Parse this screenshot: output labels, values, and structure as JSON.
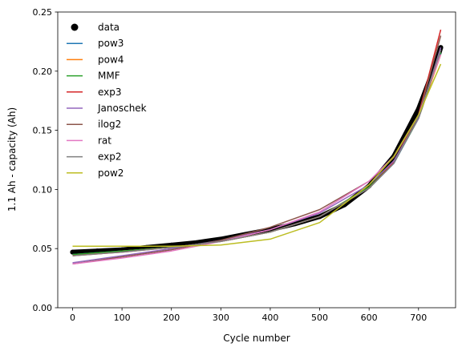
{
  "chart_data": {
    "type": "line",
    "xlabel": "Cycle number",
    "ylabel": "1.1 Ah - capacity (Ah)",
    "xlim": [
      -30,
      775
    ],
    "ylim": [
      0,
      0.25
    ],
    "xticks": [
      0,
      100,
      200,
      300,
      400,
      500,
      600,
      700
    ],
    "yticks": [
      0.0,
      0.05,
      0.1,
      0.15,
      0.2,
      0.25
    ],
    "ytick_labels": [
      "0.00",
      "0.05",
      "0.10",
      "0.15",
      "0.20",
      "0.25"
    ],
    "legend_position": "top-left",
    "grid": false,
    "data_points": {
      "name": "data",
      "color": "#000000",
      "x": [
        0,
        50,
        100,
        150,
        200,
        250,
        300,
        350,
        400,
        450,
        500,
        550,
        600,
        650,
        700,
        720,
        740,
        745
      ],
      "y": [
        0.047,
        0.048,
        0.049,
        0.051,
        0.053,
        0.055,
        0.058,
        0.062,
        0.066,
        0.071,
        0.077,
        0.087,
        0.103,
        0.128,
        0.168,
        0.19,
        0.213,
        0.22
      ]
    },
    "series": [
      {
        "name": "pow3",
        "color": "#1f77b4",
        "x": [
          0,
          100,
          200,
          300,
          400,
          500,
          600,
          650,
          700,
          745
        ],
        "y": [
          0.045,
          0.048,
          0.051,
          0.056,
          0.064,
          0.077,
          0.101,
          0.122,
          0.16,
          0.215
        ]
      },
      {
        "name": "pow4",
        "color": "#ff7f0e",
        "x": [
          0,
          100,
          200,
          300,
          400,
          500,
          600,
          650,
          700,
          745
        ],
        "y": [
          0.044,
          0.048,
          0.051,
          0.056,
          0.064,
          0.077,
          0.102,
          0.123,
          0.16,
          0.214
        ]
      },
      {
        "name": "MMF",
        "color": "#2ca02c",
        "x": [
          0,
          100,
          200,
          300,
          400,
          500,
          600,
          650,
          700,
          745
        ],
        "y": [
          0.045,
          0.048,
          0.051,
          0.056,
          0.064,
          0.077,
          0.102,
          0.123,
          0.16,
          0.216
        ]
      },
      {
        "name": "exp3",
        "color": "#d62728",
        "x": [
          0,
          100,
          200,
          300,
          400,
          500,
          600,
          650,
          700,
          745
        ],
        "y": [
          0.044,
          0.047,
          0.051,
          0.056,
          0.064,
          0.077,
          0.101,
          0.123,
          0.163,
          0.235
        ]
      },
      {
        "name": "Janoschek",
        "color": "#9467bd",
        "x": [
          0,
          100,
          200,
          300,
          400,
          500,
          600,
          650,
          700,
          745
        ],
        "y": [
          0.038,
          0.044,
          0.05,
          0.057,
          0.066,
          0.08,
          0.104,
          0.124,
          0.16,
          0.22
        ]
      },
      {
        "name": "ilog2",
        "color": "#8c564b",
        "x": [
          0,
          100,
          200,
          300,
          400,
          500,
          600,
          650,
          700,
          745
        ],
        "y": [
          0.037,
          0.043,
          0.049,
          0.057,
          0.068,
          0.083,
          0.107,
          0.127,
          0.162,
          0.23
        ]
      },
      {
        "name": "rat",
        "color": "#e377c2",
        "x": [
          0,
          100,
          200,
          300,
          400,
          500,
          600,
          650,
          700,
          745
        ],
        "y": [
          0.037,
          0.042,
          0.048,
          0.056,
          0.066,
          0.081,
          0.107,
          0.128,
          0.163,
          0.214
        ]
      },
      {
        "name": "exp2",
        "color": "#7f7f7f",
        "x": [
          0,
          100,
          200,
          300,
          400,
          500,
          600,
          650,
          700,
          745
        ],
        "y": [
          0.044,
          0.047,
          0.051,
          0.056,
          0.064,
          0.077,
          0.101,
          0.122,
          0.161,
          0.218
        ]
      },
      {
        "name": "pow2",
        "color": "#bcbd22",
        "x": [
          0,
          100,
          200,
          300,
          400,
          500,
          600,
          650,
          700,
          745
        ],
        "y": [
          0.052,
          0.052,
          0.052,
          0.053,
          0.058,
          0.072,
          0.104,
          0.128,
          0.163,
          0.206
        ]
      }
    ]
  }
}
